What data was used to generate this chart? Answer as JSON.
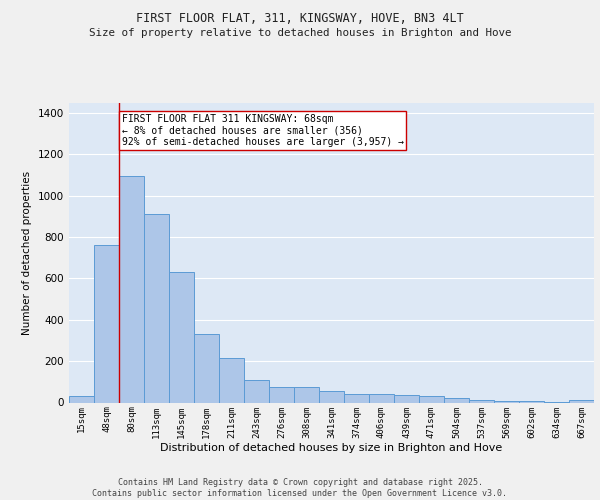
{
  "title_line1": "FIRST FLOOR FLAT, 311, KINGSWAY, HOVE, BN3 4LT",
  "title_line2": "Size of property relative to detached houses in Brighton and Hove",
  "xlabel": "Distribution of detached houses by size in Brighton and Hove",
  "ylabel": "Number of detached properties",
  "categories": [
    "15sqm",
    "48sqm",
    "80sqm",
    "113sqm",
    "145sqm",
    "178sqm",
    "211sqm",
    "243sqm",
    "276sqm",
    "308sqm",
    "341sqm",
    "374sqm",
    "406sqm",
    "439sqm",
    "471sqm",
    "504sqm",
    "537sqm",
    "569sqm",
    "602sqm",
    "634sqm",
    "667sqm"
  ],
  "values": [
    30,
    760,
    1095,
    910,
    630,
    330,
    215,
    110,
    75,
    75,
    55,
    40,
    40,
    35,
    30,
    20,
    10,
    5,
    5,
    3,
    10
  ],
  "bar_color": "#adc6e8",
  "bar_edge_color": "#5b9bd5",
  "bg_color": "#dde8f5",
  "grid_color": "#ffffff",
  "annotation_text": "FIRST FLOOR FLAT 311 KINGSWAY: 68sqm\n← 8% of detached houses are smaller (356)\n92% of semi-detached houses are larger (3,957) →",
  "vline_x": 1.5,
  "vline_color": "#cc0000",
  "footer_text": "Contains HM Land Registry data © Crown copyright and database right 2025.\nContains public sector information licensed under the Open Government Licence v3.0.",
  "ylim": [
    0,
    1450
  ],
  "yticks": [
    0,
    200,
    400,
    600,
    800,
    1000,
    1200,
    1400
  ]
}
